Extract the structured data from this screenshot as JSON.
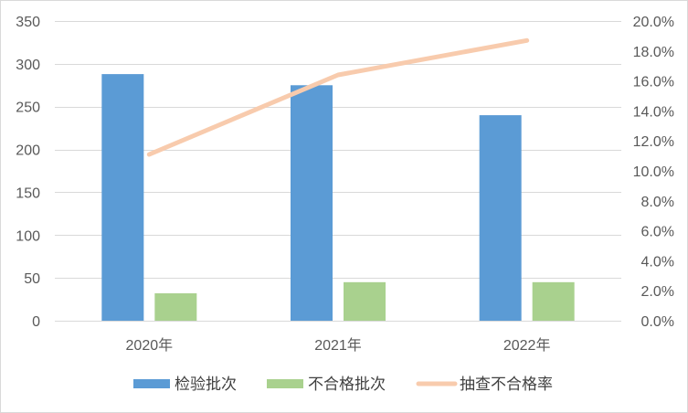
{
  "chart_data": {
    "type": "bar",
    "categories": [
      "2020年",
      "2021年",
      "2022年"
    ],
    "series": [
      {
        "name": "检验批次",
        "kind": "bar",
        "axis": "left",
        "color": "#5b9bd5",
        "values": [
          288,
          275,
          240
        ]
      },
      {
        "name": "不合格批次",
        "kind": "bar",
        "axis": "left",
        "color": "#a9d18e",
        "values": [
          32,
          45,
          45
        ]
      },
      {
        "name": "抽查不合格率",
        "kind": "line",
        "axis": "right",
        "color": "#f8cbad",
        "values": [
          0.111,
          0.164,
          0.187
        ]
      }
    ],
    "left_axis": {
      "min": 0,
      "max": 350,
      "step": 50,
      "tick_labels": [
        "0",
        "50",
        "100",
        "150",
        "200",
        "250",
        "300",
        "350"
      ]
    },
    "right_axis": {
      "min": 0,
      "max": 0.2,
      "step": 0.02,
      "tick_labels": [
        "0.0%",
        "2.0%",
        "4.0%",
        "6.0%",
        "8.0%",
        "10.0%",
        "12.0%",
        "14.0%",
        "16.0%",
        "18.0%",
        "20.0%"
      ]
    },
    "grid": true,
    "legend_position": "bottom"
  }
}
